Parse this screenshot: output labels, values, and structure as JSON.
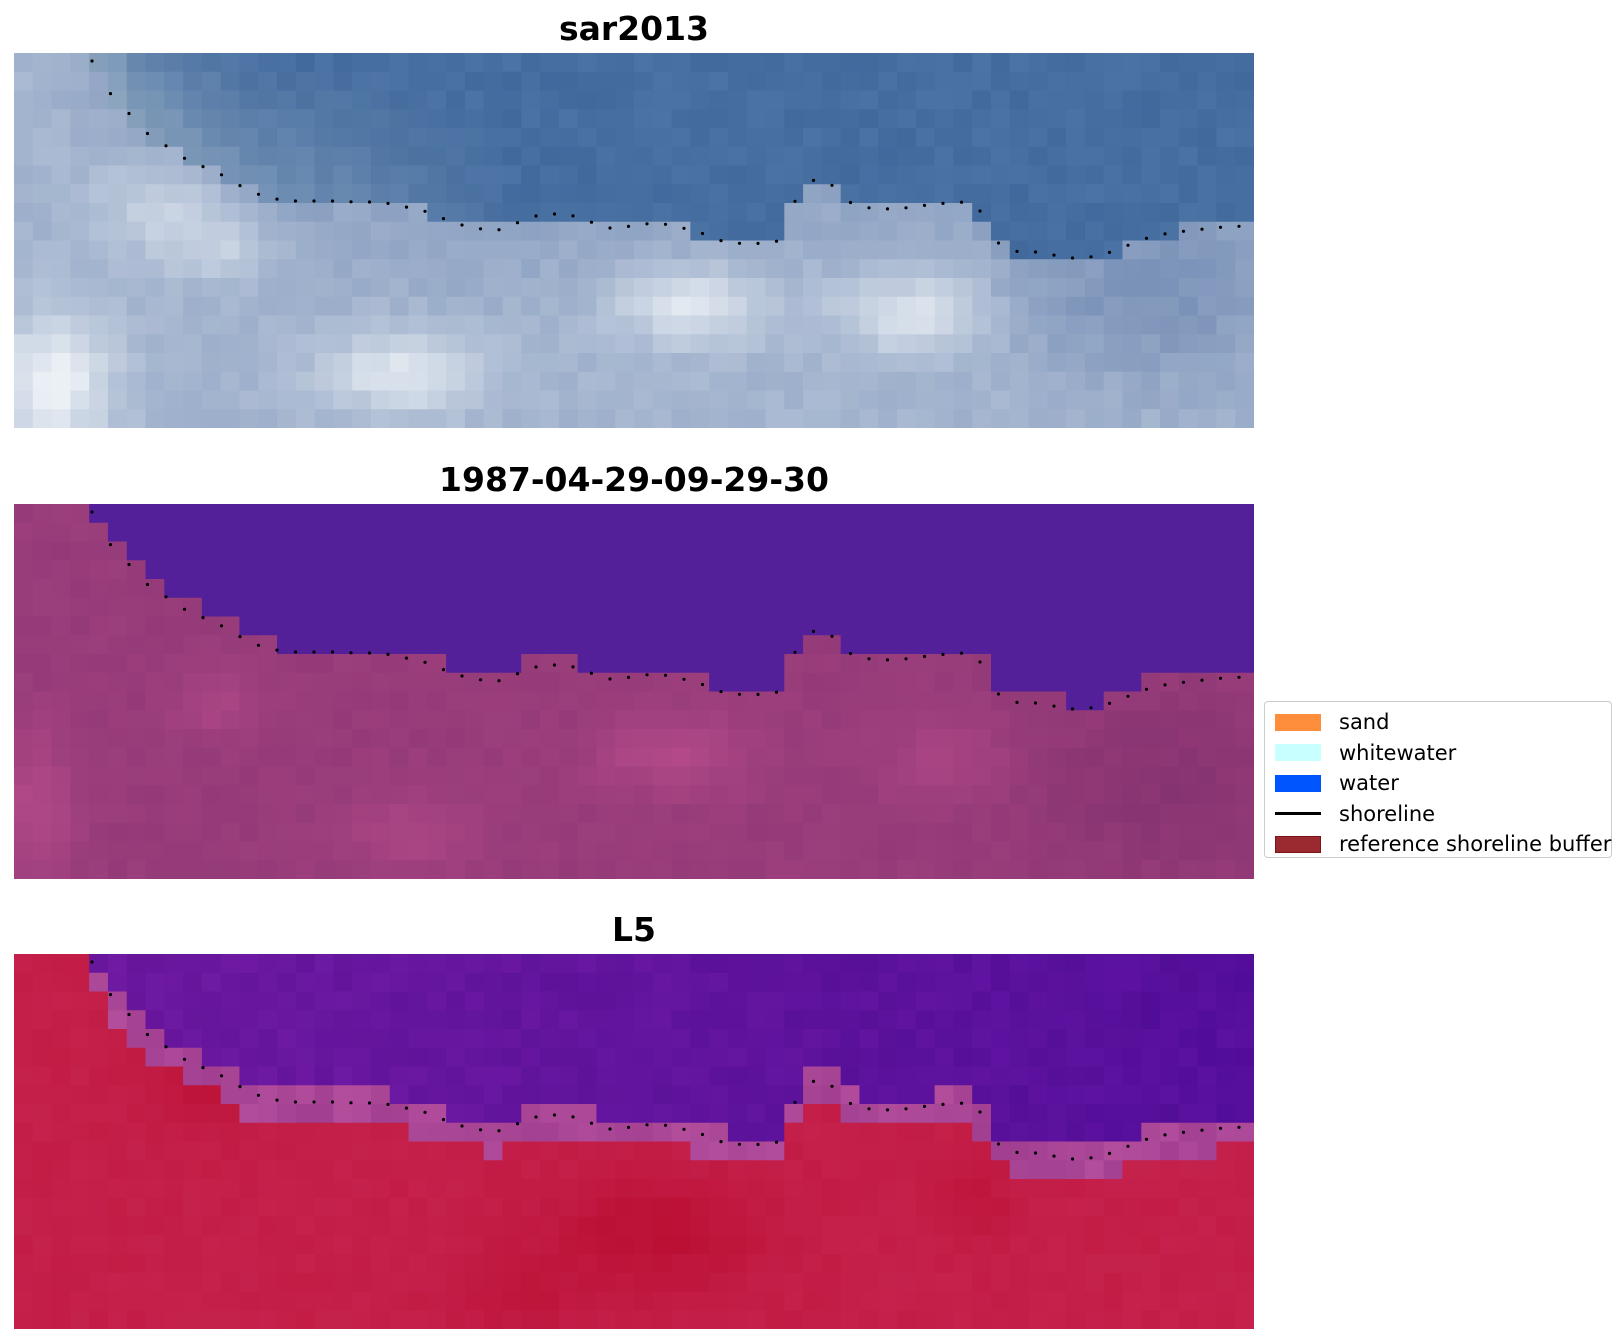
{
  "panels": [
    {
      "title": "sar2013",
      "scheme": "rgb",
      "description_name": "sar-rgb-image"
    },
    {
      "title": "1987-04-29-09-29-30",
      "scheme": "classified",
      "description_name": "classified-image"
    },
    {
      "title": "L5",
      "scheme": "index",
      "description_name": "index-image"
    }
  ],
  "legend": {
    "items": [
      {
        "label": "sand",
        "type": "patch",
        "color": "#fe8d3c",
        "edge": "#fe8d3c"
      },
      {
        "label": "whitewater",
        "type": "patch",
        "color": "#c8ffff",
        "edge": "#c8ffff"
      },
      {
        "label": "water",
        "type": "patch",
        "color": "#0055ff",
        "edge": "#0055ff"
      },
      {
        "label": "shoreline",
        "type": "line",
        "color": "#000000"
      },
      {
        "label": "reference shoreline buffer",
        "type": "patch",
        "color": "#9b2a30",
        "edge": "#7a1418"
      }
    ]
  },
  "colors": {
    "water_classified": "#53209a",
    "land_classified": "#8a3a7e",
    "index_water": "#5e0ea0",
    "index_land": "#c4184a",
    "shoreline_dots": "#000000"
  }
}
